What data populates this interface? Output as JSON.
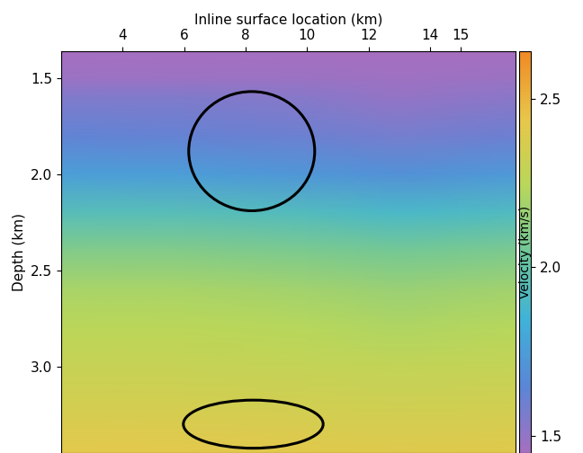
{
  "chart_data": {
    "type": "heatmap",
    "xlabel": "Inline surface location (km)",
    "ylabel": "Depth (km)",
    "colorbar_label": "Velocity (km/s)",
    "x": [
      2.0,
      6.0,
      10.0,
      13.0,
      16.8
    ],
    "y": [
      1.36,
      1.5,
      1.6,
      1.8,
      2.0,
      2.2,
      2.4,
      2.6,
      2.8,
      3.0,
      3.2,
      3.45
    ],
    "values": [
      [
        1.45,
        1.45,
        1.45,
        1.45,
        1.45
      ],
      [
        1.48,
        1.48,
        1.48,
        1.47,
        1.48
      ],
      [
        1.55,
        1.55,
        1.53,
        1.5,
        1.52
      ],
      [
        1.63,
        1.62,
        1.6,
        1.58,
        1.6
      ],
      [
        1.76,
        1.75,
        1.72,
        1.7,
        1.73
      ],
      [
        1.95,
        1.95,
        1.93,
        1.9,
        1.92
      ],
      [
        2.1,
        2.1,
        2.08,
        2.06,
        2.08
      ],
      [
        2.2,
        2.2,
        2.18,
        2.16,
        2.18
      ],
      [
        2.25,
        2.25,
        2.24,
        2.22,
        2.24
      ],
      [
        2.3,
        2.3,
        2.29,
        2.28,
        2.29
      ],
      [
        2.35,
        2.35,
        2.34,
        2.33,
        2.34
      ],
      [
        2.42,
        2.42,
        2.41,
        2.4,
        2.41
      ]
    ],
    "xlim": [
      2.0,
      16.8
    ],
    "ylim": [
      3.45,
      1.36
    ],
    "xticks": [
      4,
      6,
      8,
      10,
      12,
      14,
      15
    ],
    "yticks": [
      1.5,
      2.0,
      2.5,
      3.0
    ],
    "clim": [
      1.45,
      2.64
    ],
    "cticks": [
      1.5,
      2.0,
      2.5
    ],
    "ellipses": [
      {
        "center": [
          8.2,
          1.88
        ],
        "width": 4.1,
        "height": 0.62
      },
      {
        "center": [
          8.25,
          3.3
        ],
        "width": 4.55,
        "height": 0.25
      }
    ]
  }
}
